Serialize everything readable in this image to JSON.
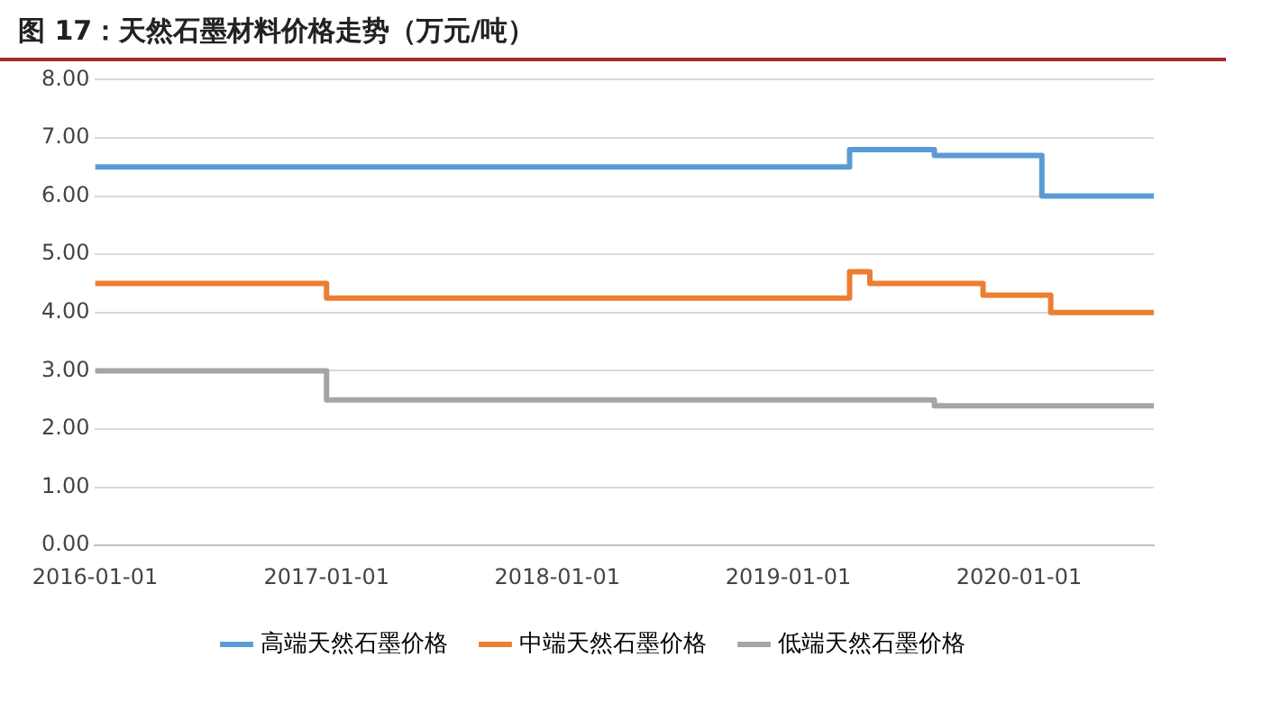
{
  "chart_data": {
    "type": "step",
    "title": "图 17：天然石墨材料价格走势（万元/吨）",
    "series": [
      {
        "name": "高端天然石墨价格",
        "color": "#5b9bd5",
        "x": [
          "2016-01-01",
          "2019-04-08",
          "2019-08-20",
          "2020-02-06",
          "2020-08-01"
        ],
        "values": [
          6.5,
          6.8,
          6.7,
          6.0,
          6.0
        ]
      },
      {
        "name": "中端天然石墨价格",
        "color": "#ed7d31",
        "x": [
          "2016-01-01",
          "2017-01-01",
          "2019-04-08",
          "2019-05-10",
          "2019-11-05",
          "2020-02-20",
          "2020-08-01"
        ],
        "values": [
          4.5,
          4.25,
          4.7,
          4.5,
          4.3,
          4.0,
          4.0
        ]
      },
      {
        "name": "低端天然石墨价格",
        "color": "#a5a5a5",
        "x": [
          "2016-01-01",
          "2017-01-01",
          "2019-08-20",
          "2020-08-01"
        ],
        "values": [
          3.0,
          2.5,
          2.4,
          2.4
        ]
      }
    ],
    "xlim": [
      "2016-01-01",
      "2020-08-01"
    ],
    "xticks": [
      "2016-01-01",
      "2017-01-01",
      "2018-01-01",
      "2019-01-01",
      "2020-01-01"
    ],
    "ylim": [
      0,
      8
    ],
    "yticks": [
      {
        "value": 0,
        "label": "0.00"
      },
      {
        "value": 1,
        "label": "1.00"
      },
      {
        "value": 2,
        "label": "2.00"
      },
      {
        "value": 3,
        "label": "3.00"
      },
      {
        "value": 4,
        "label": "4.00"
      },
      {
        "value": 5,
        "label": "5.00"
      },
      {
        "value": 6,
        "label": "6.00"
      },
      {
        "value": 7,
        "label": "7.00"
      },
      {
        "value": 8,
        "label": "8.00"
      }
    ],
    "grid": "y",
    "legend": "bottom",
    "marker": "none",
    "line_style": "solid"
  }
}
